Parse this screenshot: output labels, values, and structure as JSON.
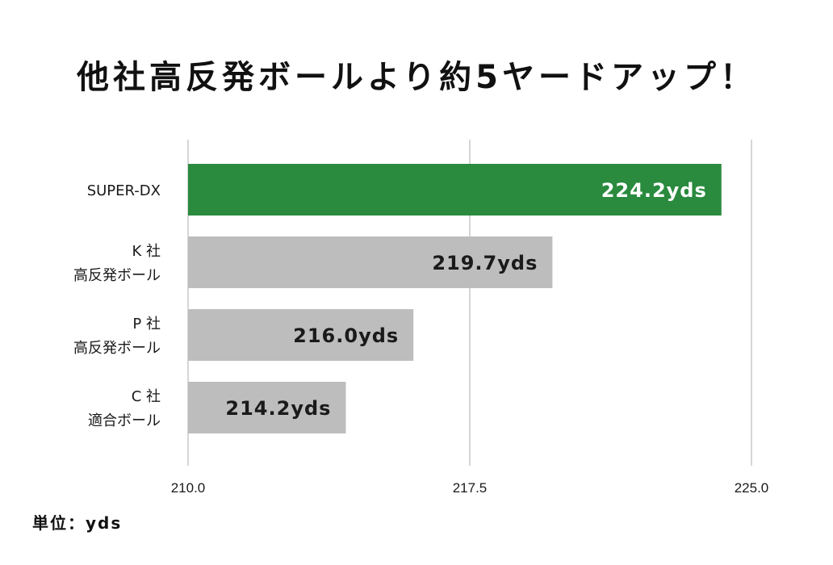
{
  "title": "他社高反発ボールより約5ヤードアップ！",
  "unit_label": "単位：yds",
  "colors": {
    "highlight_bar": "#2a8a3e",
    "other_bar": "#bdbdbd",
    "grid": "#d6d6d6",
    "highlight_value_text": "#ffffff",
    "other_value_text": "#1a1a1a",
    "category_text": "#1a1a1a",
    "tick_text": "#1a1a1a"
  },
  "chart_data": {
    "type": "bar",
    "orientation": "horizontal",
    "categories": [
      [
        "SUPER-DX"
      ],
      [
        "K 社",
        "高反発ボール"
      ],
      [
        "P 社",
        "高反発ボール"
      ],
      [
        "C 社",
        "適合ボール"
      ]
    ],
    "values": [
      224.2,
      219.7,
      216.0,
      214.2
    ],
    "value_labels": [
      "224.2yds",
      "219.7yds",
      "216.0yds",
      "214.2yds"
    ],
    "highlight_index": 0,
    "xlim": [
      210.0,
      225.0
    ],
    "xticks": [
      210.0,
      217.5,
      225.0
    ],
    "xtick_labels": [
      "210.0",
      "217.5",
      "225.0"
    ],
    "grid": true,
    "legend": "none"
  }
}
